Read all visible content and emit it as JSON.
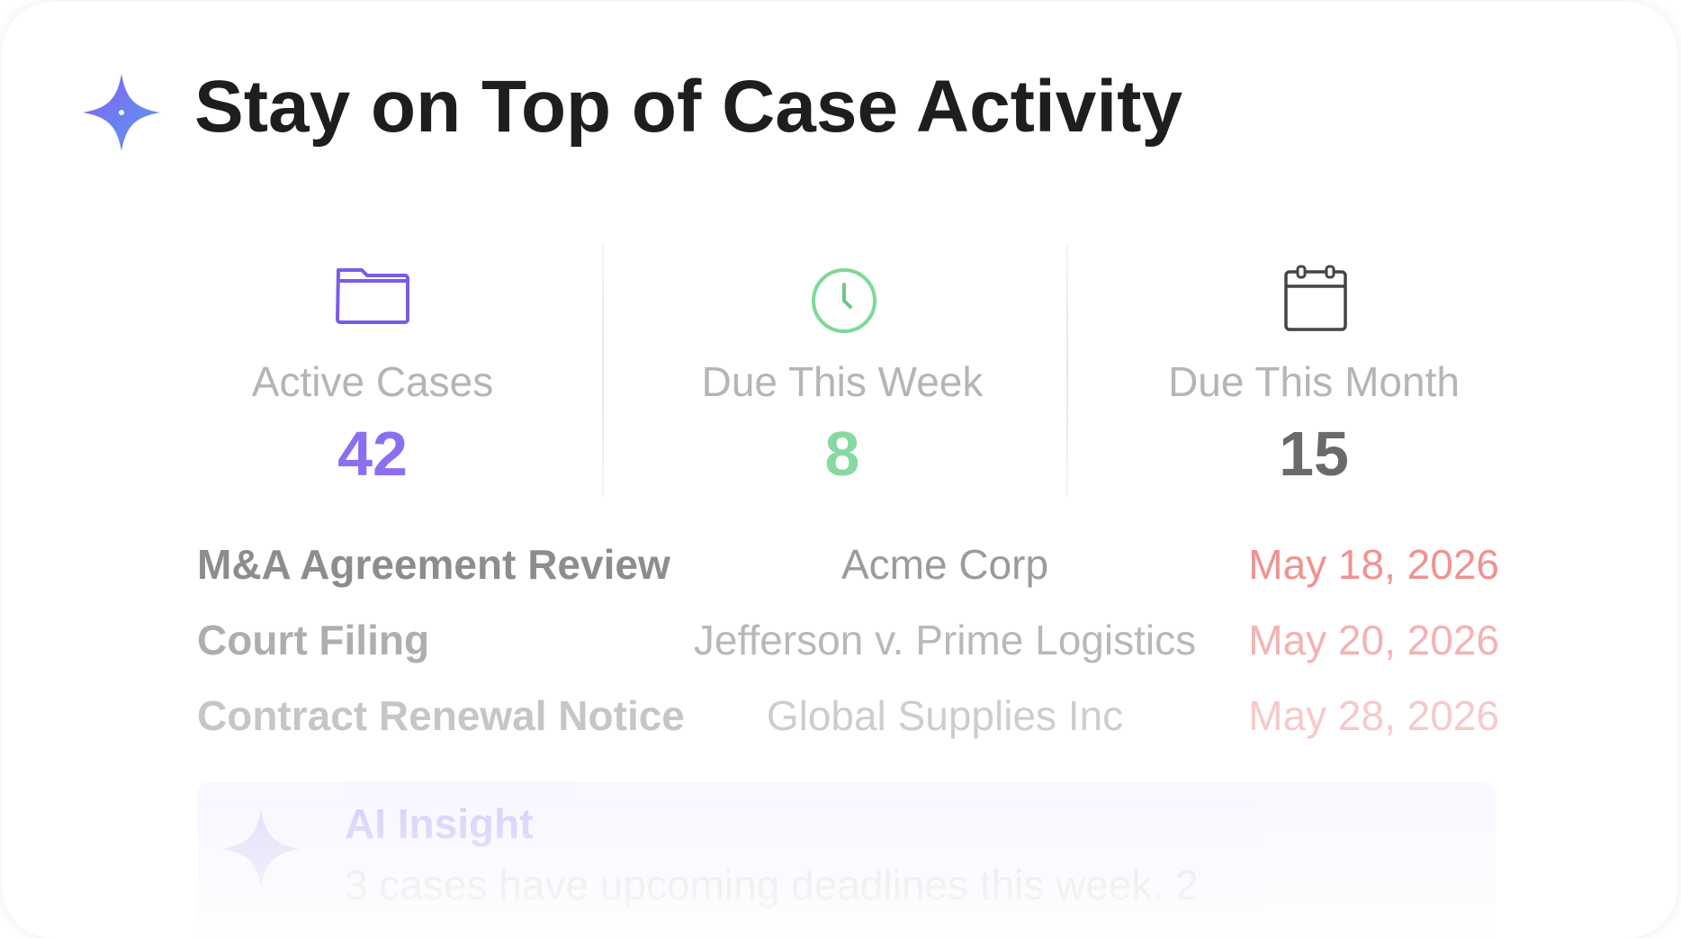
{
  "header": {
    "title": "Stay on Top of Case Activity"
  },
  "stats": [
    {
      "label": "Active Cases",
      "value": 42
    },
    {
      "label": "Due This Week",
      "value": 8
    },
    {
      "label": "Due This Month",
      "value": 15
    }
  ],
  "cases": [
    {
      "title": "M&A Agreement Review",
      "client": "Acme Corp",
      "date": "May 18, 2026"
    },
    {
      "title": "Court Filing",
      "client": "Jefferson v. Prime Logistics",
      "date": "May 20, 2026"
    },
    {
      "title": "Contract Renewal Notice",
      "client": "Global Supplies Inc",
      "date": "May 28, 2026"
    }
  ],
  "insight": {
    "title": "AI Insight",
    "text": "3 cases have upcoming deadlines this week. 2"
  }
}
